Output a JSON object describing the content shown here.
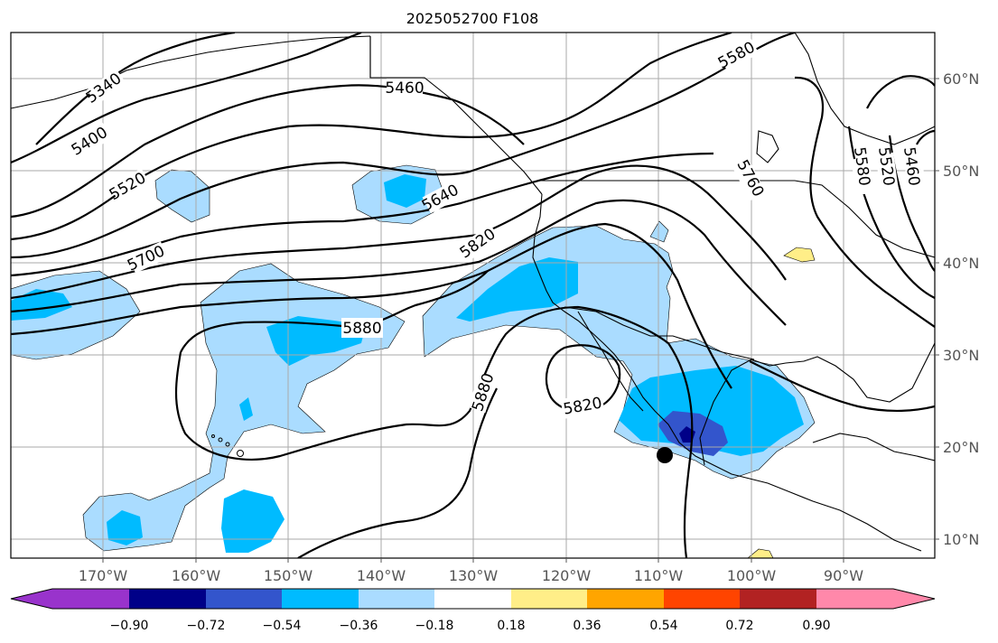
{
  "chart_data": {
    "type": "contour map",
    "title": "2025052700 F108",
    "x_ticks": [
      "170°W",
      "160°W",
      "150°W",
      "140°W",
      "130°W",
      "120°W",
      "110°W",
      "100°W",
      "90°W"
    ],
    "y_ticks": [
      "60°N",
      "50°N",
      "40°N",
      "30°N",
      "20°N",
      "10°N"
    ],
    "contour_labels": [
      {
        "value": "5340"
      },
      {
        "value": "5400"
      },
      {
        "value": "5460"
      },
      {
        "value": "5520"
      },
      {
        "value": "5580"
      },
      {
        "value": "5640"
      },
      {
        "value": "5700"
      },
      {
        "value": "5760"
      },
      {
        "value": "5820"
      },
      {
        "value": "5880"
      },
      {
        "value": "5880"
      },
      {
        "value": "5820"
      },
      {
        "value": "5580"
      },
      {
        "value": "5520"
      },
      {
        "value": "5460"
      }
    ],
    "marker": {
      "lon": -109,
      "lat": 19.5
    },
    "colorbar": {
      "colors": [
        "#9933cc",
        "#000088",
        "#3355cc",
        "#00bbff",
        "#aadcff",
        "#ffffff",
        "#ffee88",
        "#ffa500",
        "#ff4400",
        "#b22222",
        "#ff88aa"
      ],
      "tick_labels": [
        "−0.90",
        "−0.72",
        "−0.54",
        "−0.36",
        "−0.18",
        "0.18",
        "0.36",
        "0.54",
        "0.72",
        "0.90"
      ]
    }
  }
}
